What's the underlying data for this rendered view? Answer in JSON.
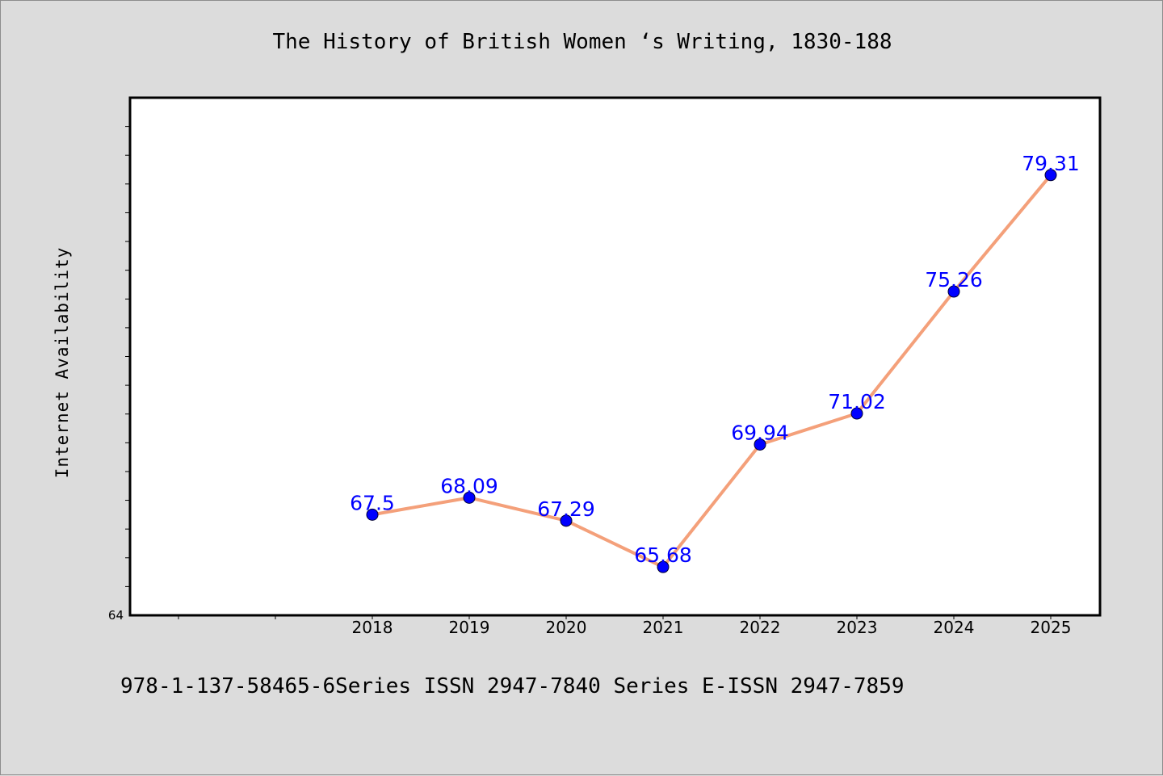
{
  "chart_data": {
    "type": "line",
    "title": "The History of British Women ‘s Writing, 1830-188",
    "xlabel": "",
    "ylabel": "Internet Availability",
    "categories": [
      "2018",
      "2019",
      "2020",
      "2021",
      "2022",
      "2023",
      "2024",
      "2025"
    ],
    "series": [
      {
        "values": [
          67.5,
          68.09,
          67.29,
          65.68,
          69.94,
          71.02,
          75.26,
          79.31
        ],
        "data_labels": [
          "67.5",
          "68.09",
          "67.29",
          "65.68",
          "69.94",
          "71.02",
          "75.26",
          "79.31"
        ]
      }
    ],
    "y_tick_labels": [
      "64"
    ],
    "ylim": [
      64,
      82
    ],
    "line_color": "#f4a07a",
    "marker_color": "#0000ff",
    "label_color": "#0000ff",
    "grid": false,
    "legend": "none"
  },
  "footer": "978-1-137-58465-6Series ISSN 2947-7840 Series E-ISSN 2947-7859"
}
